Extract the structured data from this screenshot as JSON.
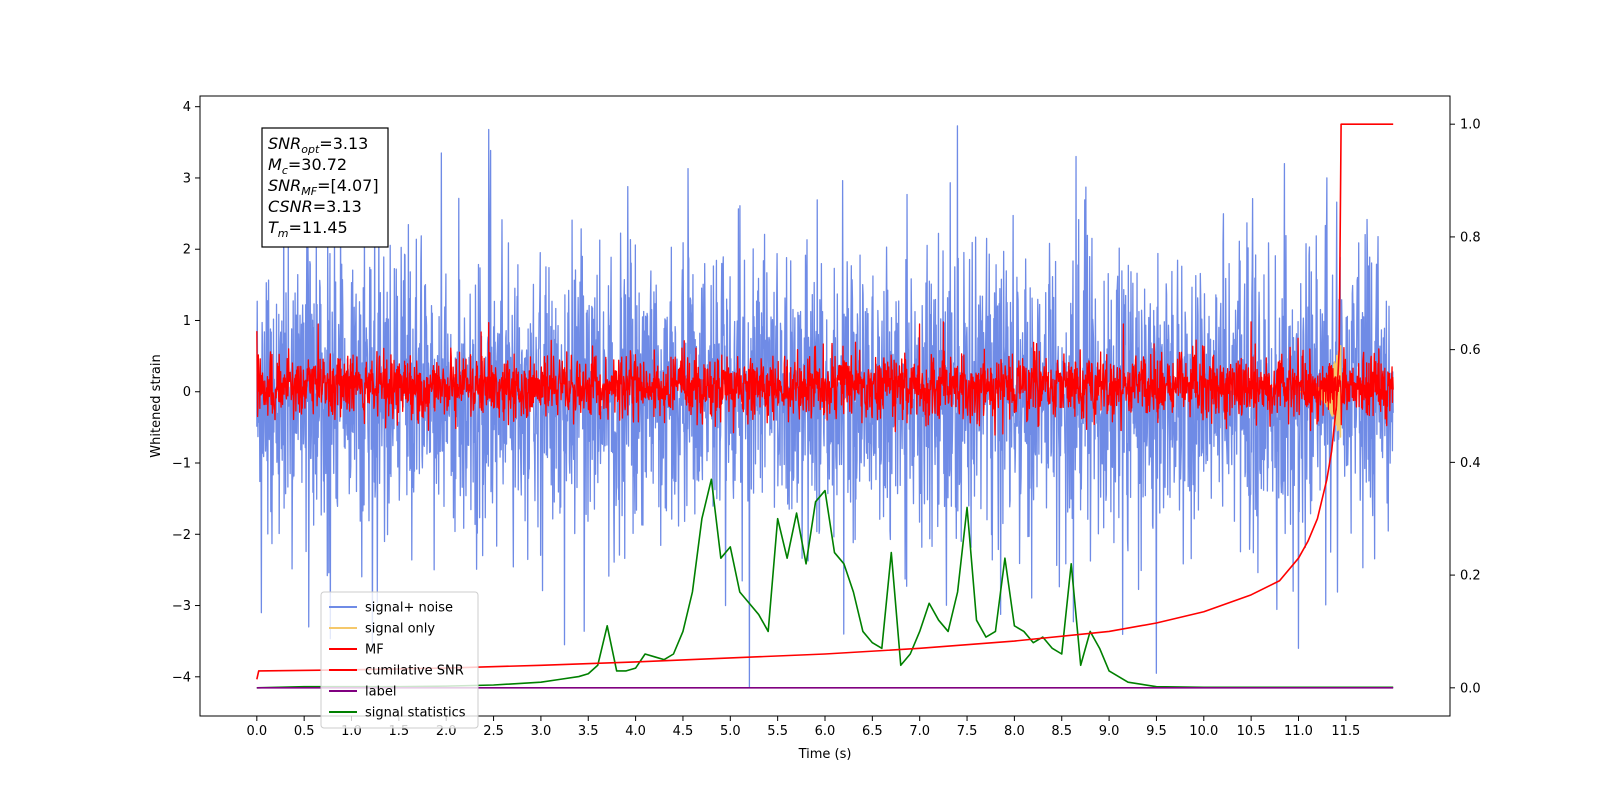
{
  "chart_data": {
    "type": "line",
    "xlabel": "Time (s)",
    "ylabel": "Whitened strain",
    "xlim": [
      -0.6,
      12.6
    ],
    "ylim": [
      -4.55,
      4.15
    ],
    "y2lim": [
      -0.05,
      1.05
    ],
    "x_ticks": [
      "0.0",
      "0.5",
      "1.0",
      "1.5",
      "2.0",
      "2.5",
      "3.0",
      "3.5",
      "4.0",
      "4.5",
      "5.0",
      "5.5",
      "6.0",
      "6.5",
      "7.0",
      "7.5",
      "8.0",
      "8.5",
      "9.0",
      "9.5",
      "10.0",
      "10.5",
      "11.0",
      "11.5"
    ],
    "y_ticks": [
      "4",
      "3",
      "2",
      "1",
      "0",
      "−1",
      "−2",
      "−3",
      "−4"
    ],
    "y2_ticks": [
      "1.0",
      "0.8",
      "0.6",
      "0.4",
      "0.2",
      "0.0"
    ],
    "grid": false,
    "legend_position": "lower-left",
    "annotation": {
      "lines": [
        {
          "sym": "SNR",
          "sub": "opt",
          "value": "=3.13"
        },
        {
          "sym": "M",
          "sub": "c",
          "value": "=30.72"
        },
        {
          "sym": "SNR",
          "sub": "MF",
          "value": "=[4.07]"
        },
        {
          "sym": "CSNR",
          "sub": "",
          "value": "=3.13"
        },
        {
          "sym": "T",
          "sub": "m",
          "value": "=11.45"
        }
      ]
    },
    "series": [
      {
        "name": "signal+ noise",
        "color": "#6f8be6",
        "axis": "left",
        "style": "noise",
        "x_range": [
          0,
          12.0
        ],
        "std": 1.0,
        "spikes": [
          [
            0.05,
            -3.1
          ],
          [
            0.55,
            -3.3
          ],
          [
            1.95,
            3.35
          ],
          [
            2.45,
            3.68
          ],
          [
            3.25,
            -3.55
          ],
          [
            4.95,
            -3.0
          ],
          [
            5.2,
            -4.15
          ],
          [
            6.2,
            -3.4
          ],
          [
            7.4,
            3.73
          ],
          [
            8.65,
            3.3
          ],
          [
            9.5,
            -3.95
          ],
          [
            10.85,
            3.2
          ],
          [
            11.0,
            -3.6
          ],
          [
            11.3,
            3.0
          ]
        ]
      },
      {
        "name": "signal only",
        "color": "#f5c86b",
        "axis": "left",
        "style": "chirp",
        "x_range": [
          11.0,
          11.45
        ],
        "amplitude": 0.7
      },
      {
        "name": "MF",
        "color": "#ff0000",
        "axis": "left",
        "style": "noise",
        "x_range": [
          0,
          12.0
        ],
        "std": 0.22,
        "offset": 0.08,
        "spikes": [
          [
            0.0,
            0.85
          ],
          [
            0.65,
            0.95
          ],
          [
            2.45,
            0.97
          ],
          [
            7.0,
            0.95
          ],
          [
            7.25,
            0.98
          ],
          [
            9.15,
            0.95
          ],
          [
            10.5,
            0.98
          ]
        ]
      },
      {
        "name": "cumilative SNR",
        "color": "#ff0000",
        "axis": "right",
        "x": [
          0.0,
          0.02,
          1.0,
          2.0,
          3.0,
          4.0,
          5.0,
          6.0,
          7.0,
          8.0,
          9.0,
          9.5,
          10.0,
          10.5,
          10.8,
          11.0,
          11.1,
          11.2,
          11.3,
          11.35,
          11.4,
          11.43,
          11.45,
          11.47,
          12.0
        ],
        "y": [
          0.015,
          0.03,
          0.032,
          0.035,
          0.04,
          0.046,
          0.053,
          0.06,
          0.07,
          0.083,
          0.1,
          0.115,
          0.135,
          0.165,
          0.19,
          0.23,
          0.26,
          0.3,
          0.37,
          0.42,
          0.5,
          0.6,
          1.0,
          1.0,
          1.0
        ]
      },
      {
        "name": "label",
        "color": "#800080",
        "axis": "right",
        "x": [
          0.0,
          12.0
        ],
        "y": [
          0.0,
          0.0
        ]
      },
      {
        "name": "signal statistics",
        "color": "#008000",
        "axis": "right",
        "x": [
          0.0,
          0.5,
          1.0,
          1.5,
          2.0,
          2.5,
          3.0,
          3.2,
          3.4,
          3.5,
          3.6,
          3.7,
          3.8,
          3.9,
          4.0,
          4.1,
          4.2,
          4.3,
          4.4,
          4.5,
          4.6,
          4.7,
          4.8,
          4.9,
          5.0,
          5.1,
          5.2,
          5.3,
          5.4,
          5.5,
          5.6,
          5.7,
          5.8,
          5.9,
          6.0,
          6.1,
          6.2,
          6.3,
          6.4,
          6.5,
          6.6,
          6.7,
          6.8,
          6.9,
          7.0,
          7.1,
          7.2,
          7.3,
          7.4,
          7.5,
          7.6,
          7.7,
          7.8,
          7.9,
          8.0,
          8.1,
          8.2,
          8.3,
          8.4,
          8.5,
          8.6,
          8.7,
          8.8,
          8.9,
          9.0,
          9.2,
          9.5,
          10.0,
          11.0,
          12.0
        ],
        "y": [
          0.0,
          0.002,
          0.002,
          0.002,
          0.003,
          0.005,
          0.01,
          0.015,
          0.02,
          0.025,
          0.04,
          0.11,
          0.03,
          0.03,
          0.035,
          0.06,
          0.055,
          0.05,
          0.06,
          0.1,
          0.17,
          0.3,
          0.37,
          0.23,
          0.25,
          0.17,
          0.15,
          0.13,
          0.1,
          0.3,
          0.23,
          0.31,
          0.22,
          0.33,
          0.35,
          0.24,
          0.22,
          0.17,
          0.1,
          0.08,
          0.07,
          0.24,
          0.04,
          0.06,
          0.1,
          0.15,
          0.12,
          0.1,
          0.17,
          0.32,
          0.12,
          0.09,
          0.1,
          0.23,
          0.11,
          0.1,
          0.08,
          0.09,
          0.07,
          0.06,
          0.22,
          0.04,
          0.1,
          0.07,
          0.03,
          0.01,
          0.002,
          0.001,
          0.001,
          0.001
        ]
      }
    ]
  }
}
